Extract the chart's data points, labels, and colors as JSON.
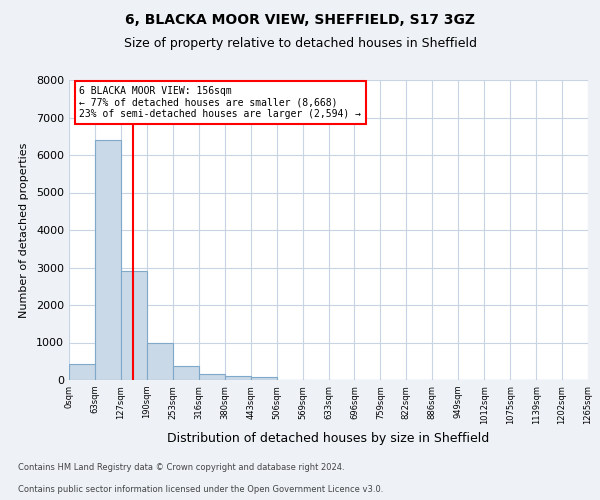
{
  "title1": "6, BLACKA MOOR VIEW, SHEFFIELD, S17 3GZ",
  "title2": "Size of property relative to detached houses in Sheffield",
  "xlabel": "Distribution of detached houses by size in Sheffield",
  "ylabel": "Number of detached properties",
  "bin_labels": [
    "0sqm",
    "63sqm",
    "127sqm",
    "190sqm",
    "253sqm",
    "316sqm",
    "380sqm",
    "443sqm",
    "506sqm",
    "569sqm",
    "633sqm",
    "696sqm",
    "759sqm",
    "822sqm",
    "886sqm",
    "949sqm",
    "1012sqm",
    "1075sqm",
    "1139sqm",
    "1202sqm",
    "1265sqm"
  ],
  "bar_heights": [
    430,
    6400,
    2900,
    1000,
    380,
    150,
    100,
    70,
    0,
    0,
    0,
    0,
    0,
    0,
    0,
    0,
    0,
    0,
    0,
    0
  ],
  "bar_color": "#c9d9e8",
  "bar_edge_color": "#7fa8c9",
  "grid_color": "#c8d4e3",
  "property_line_x": 2.46,
  "property_line_color": "red",
  "annotation_text": "6 BLACKA MOOR VIEW: 156sqm\n← 77% of detached houses are smaller (8,668)\n23% of semi-detached houses are larger (2,594) →",
  "ylim": [
    0,
    8000
  ],
  "yticks": [
    0,
    1000,
    2000,
    3000,
    4000,
    5000,
    6000,
    7000,
    8000
  ],
  "footer1": "Contains HM Land Registry data © Crown copyright and database right 2024.",
  "footer2": "Contains public sector information licensed under the Open Government Licence v3.0.",
  "background_color": "#eef2f7",
  "plot_bg_color": "#ffffff"
}
